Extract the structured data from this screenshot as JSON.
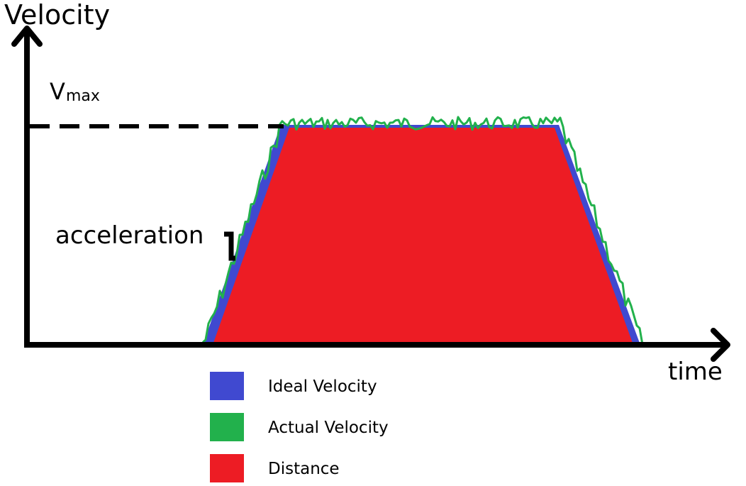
{
  "axes": {
    "y_label": "Velocity",
    "x_label": "time"
  },
  "annotations": {
    "vmax_V": "V",
    "vmax_sub": "max",
    "acceleration": "acceleration"
  },
  "colors": {
    "ideal": "#4049d0",
    "actual": "#22b14c",
    "distance": "#ed1c24",
    "axis": "#000000"
  },
  "legend": [
    {
      "label": "Ideal Velocity",
      "color": "#4049d0"
    },
    {
      "label": "Actual Velocity",
      "color": "#22b14c"
    },
    {
      "label": "Distance",
      "color": "#ed1c24"
    }
  ]
}
